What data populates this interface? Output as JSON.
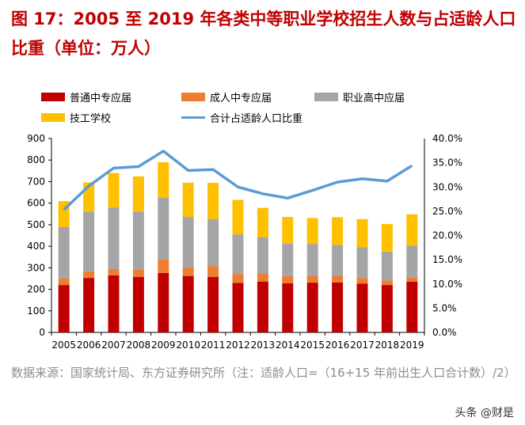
{
  "title": "图 17：2005 至 2019 年各类中等职业学校招生人数与占适龄人口比重（单位：万人）",
  "source": "数据来源：国家统计局、东方证券研究所（注：适龄人口=（16+15 年前出生人口合计数）/2）",
  "watermark": "头条 @财是",
  "chart_data": {
    "type": "bar",
    "stacked": true,
    "categories": [
      "2005",
      "2006",
      "2007",
      "2008",
      "2009",
      "2010",
      "2011",
      "2012",
      "2013",
      "2014",
      "2015",
      "2016",
      "2017",
      "2018",
      "2019"
    ],
    "series": [
      {
        "name": "普通中专应届",
        "color": "#c00000",
        "values": [
          220,
          253,
          265,
          257,
          276,
          262,
          257,
          230,
          236,
          228,
          231,
          232,
          226,
          220,
          235
        ]
      },
      {
        "name": "成人中专应届",
        "color": "#ed7d31",
        "values": [
          31,
          31,
          29,
          34,
          62,
          40,
          50,
          41,
          38,
          34,
          32,
          31,
          27,
          21,
          21
        ]
      },
      {
        "name": "职业高中应届",
        "color": "#a5a5a5",
        "values": [
          238,
          277,
          286,
          270,
          289,
          234,
          219,
          184,
          167,
          150,
          147,
          143,
          143,
          134,
          146
        ]
      },
      {
        "name": "技工学校",
        "color": "#ffc000",
        "values": [
          120,
          135,
          160,
          163,
          163,
          159,
          168,
          160,
          137,
          124,
          121,
          129,
          130,
          128,
          146
        ]
      }
    ],
    "line": {
      "name": "合计占适龄人口比重",
      "color": "#5b9bd5",
      "axis": "right",
      "values": [
        25.3,
        30.2,
        33.9,
        34.2,
        37.4,
        33.4,
        33.6,
        30.0,
        28.6,
        27.7,
        29.3,
        31.0,
        31.7,
        31.2,
        34.4
      ]
    },
    "ylim": [
      0,
      900
    ],
    "yticks": [
      "0",
      "100",
      "200",
      "300",
      "400",
      "500",
      "600",
      "700",
      "800",
      "900"
    ],
    "y2lim": [
      0,
      40
    ],
    "y2ticks": [
      "0.0%",
      "5.0%",
      "10.0%",
      "15.0%",
      "20.0%",
      "25.0%",
      "30.0%",
      "35.0%",
      "40.0%"
    ],
    "legend": "top",
    "grid": false
  }
}
